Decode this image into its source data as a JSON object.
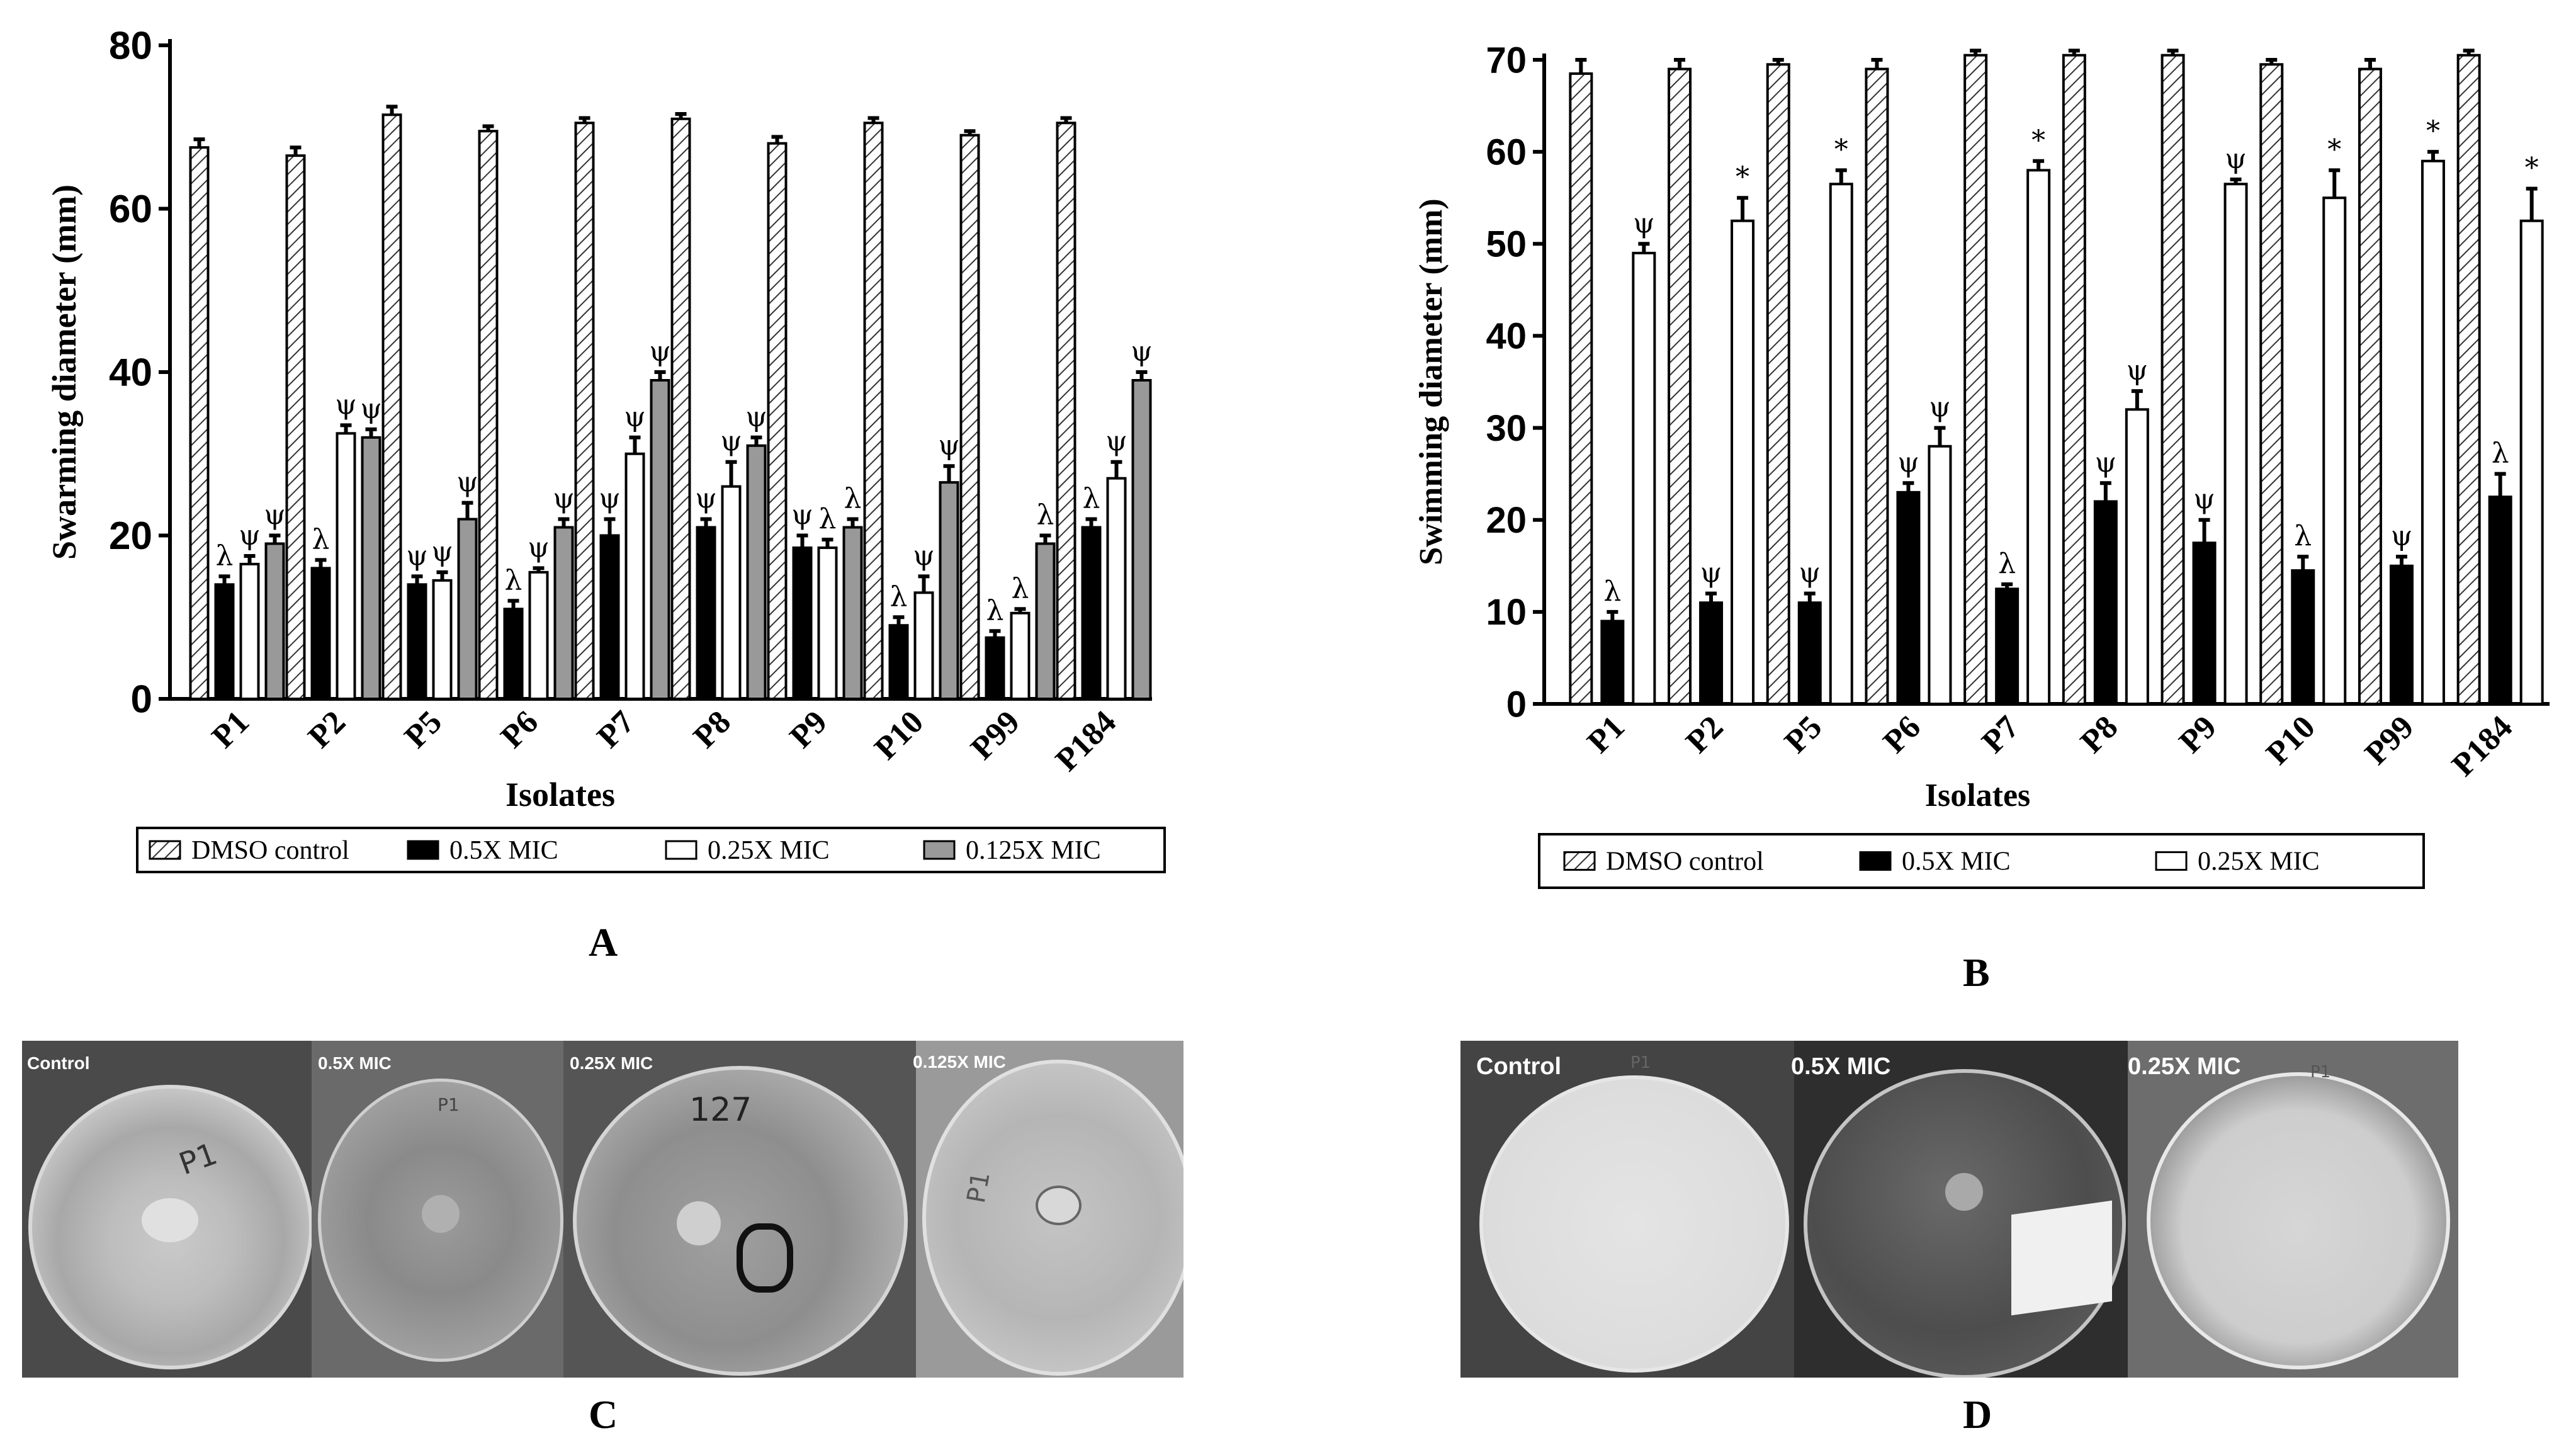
{
  "colors": {
    "dmso_fill": "#ffffff",
    "dmso_hatch": "#333333",
    "half_mic": "#000000",
    "quarter_mic": "#ffffff",
    "eighth_mic": "#999999",
    "axis": "#000000"
  },
  "panel_letters": {
    "A": "A",
    "B": "B",
    "C": "C",
    "D": "D"
  },
  "photos_c": {
    "labels": [
      "Control",
      "0.5X MIC",
      "0.25X MIC",
      "0.125X MIC"
    ],
    "plate_marks": [
      "P1",
      "P1",
      "127",
      "P1"
    ]
  },
  "photos_d": {
    "labels": [
      "Control",
      "0.5X MIC",
      "0.25X MIC"
    ],
    "plate_marks": [
      "P1",
      "",
      "P1"
    ]
  },
  "chart_data": [
    {
      "type": "bar",
      "ylabel": "Swarming diameter (mm)",
      "xlabel": "Isolates",
      "ylim": [
        0,
        80
      ],
      "yticks": [
        0,
        20,
        40,
        60,
        80
      ],
      "grid": false,
      "legend_position": "bottom",
      "categories": [
        "P1",
        "P2",
        "P5",
        "P6",
        "P7",
        "P8",
        "P9",
        "P10",
        "P99",
        "P184"
      ],
      "series": [
        {
          "name": "DMSO control",
          "style": "hatched",
          "values": [
            67.5,
            66.5,
            71.5,
            69.5,
            70.5,
            71,
            68,
            70.5,
            69,
            70.5
          ],
          "errors": [
            1,
            1,
            1,
            0.6,
            0.6,
            0.6,
            0.8,
            0.6,
            0.5,
            0.6
          ],
          "annotations": [
            "",
            "",
            "",
            "",
            "",
            "",
            "",
            "",
            "",
            ""
          ]
        },
        {
          "name": "0.5X MIC",
          "style": "black",
          "values": [
            14,
            16,
            14,
            11,
            20,
            21,
            18.5,
            9,
            7.5,
            21
          ],
          "errors": [
            1,
            1,
            1,
            1,
            2,
            1,
            1.5,
            1,
            0.8,
            1
          ],
          "annotations": [
            "λ",
            "λ",
            "ψ",
            "λ",
            "ψ",
            "ψ",
            "ψ",
            "λ",
            "λ",
            "λ"
          ]
        },
        {
          "name": "0.25X MIC",
          "style": "white",
          "values": [
            16.5,
            32.5,
            14.5,
            15.5,
            30,
            26,
            18.5,
            13,
            10.5,
            27
          ],
          "errors": [
            1,
            1,
            1,
            0.5,
            2,
            3,
            1,
            2,
            0.5,
            2
          ],
          "annotations": [
            "ψ",
            "ψ",
            "ψ",
            "ψ",
            "ψ",
            "ψ",
            "λ",
            "ψ",
            "λ",
            "ψ"
          ]
        },
        {
          "name": "0.125X MIC",
          "style": "gray",
          "values": [
            19,
            32,
            22,
            21,
            39,
            31,
            21,
            26.5,
            19,
            39
          ],
          "errors": [
            1,
            1,
            2,
            1,
            1,
            1,
            1,
            2,
            1,
            1
          ],
          "annotations": [
            "ψ",
            "ψ",
            "ψ",
            "ψ",
            "ψ",
            "ψ",
            "λ",
            "ψ",
            "λ",
            "ψ"
          ]
        }
      ]
    },
    {
      "type": "bar",
      "ylabel": "Swimming diameter (mm)",
      "xlabel": "Isolates",
      "ylim": [
        0,
        70
      ],
      "yticks": [
        0,
        10,
        20,
        30,
        40,
        50,
        60,
        70
      ],
      "grid": false,
      "legend_position": "bottom",
      "categories": [
        "P1",
        "P2",
        "P5",
        "P6",
        "P7",
        "P8",
        "P9",
        "P10",
        "P99",
        "P184"
      ],
      "series": [
        {
          "name": "DMSO control",
          "style": "hatched",
          "values": [
            68.5,
            69,
            69.5,
            69,
            70.5,
            70.5,
            70.5,
            69.5,
            69,
            70.5
          ],
          "errors": [
            1.5,
            1,
            0.5,
            1,
            0.5,
            0.5,
            0.5,
            0.5,
            1,
            0.5
          ],
          "annotations": [
            "",
            "",
            "",
            "",
            "",
            "",
            "",
            "",
            "",
            ""
          ]
        },
        {
          "name": "0.5X MIC",
          "style": "black",
          "values": [
            9,
            11,
            11,
            23,
            12.5,
            22,
            17.5,
            14.5,
            15,
            22.5
          ],
          "errors": [
            1,
            1,
            1,
            1,
            0.5,
            2,
            2.5,
            1.5,
            1,
            2.5
          ],
          "annotations": [
            "λ",
            "ψ",
            "ψ",
            "ψ",
            "λ",
            "ψ",
            "ψ",
            "λ",
            "ψ",
            "λ"
          ]
        },
        {
          "name": "0.25X MIC",
          "style": "white",
          "values": [
            49,
            52.5,
            56.5,
            28,
            58,
            32,
            56.5,
            55,
            59,
            52.5
          ],
          "errors": [
            1,
            2.5,
            1.5,
            2,
            1,
            2,
            0.5,
            3,
            1,
            3.5
          ],
          "annotations": [
            "ψ",
            "*",
            "*",
            "ψ",
            "*",
            "ψ",
            "ψ",
            "*",
            "*",
            "*"
          ]
        }
      ]
    }
  ]
}
